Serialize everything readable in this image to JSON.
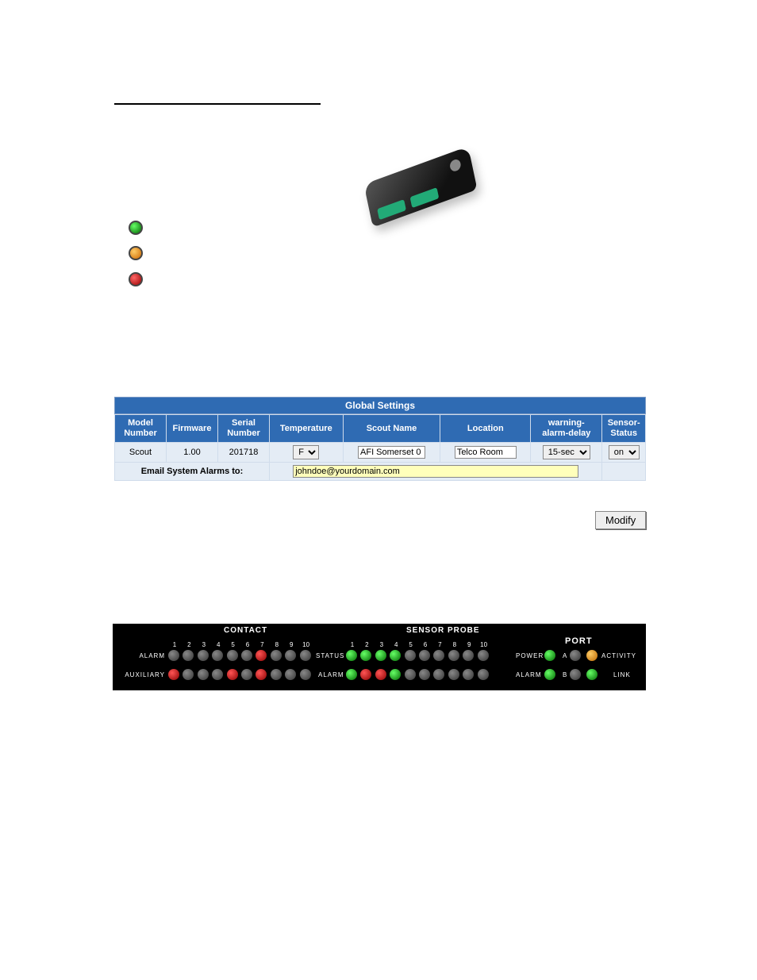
{
  "bullets": {
    "green_label": "",
    "orange_label": "",
    "red_label": ""
  },
  "global_settings": {
    "title": "Global Settings",
    "headers": [
      "Model\nNumber",
      "Firmware",
      "Serial\nNumber",
      "Temperature",
      "Scout Name",
      "Location",
      "warning-\nalarm-delay",
      "Sensor-\nStatus"
    ],
    "model": "Scout",
    "firmware": "1.00",
    "serial": "201718",
    "temp_unit": "F",
    "scout_name": "AFI Somerset 0",
    "location": "Telco Room",
    "delay": "15-sec",
    "sensor_status": "on",
    "email_label": "Email System Alarms to:",
    "email_value": "johndoe@yourdomain.com",
    "modify_label": "Modify"
  },
  "led_panel": {
    "background": "#000000",
    "section_contact": "CONTACT",
    "section_sensor": "SENSOR PROBE",
    "section_port": "PORT",
    "labels": {
      "alarm": "ALARM",
      "auxiliary": "AUXILIARY",
      "status": "STATUS",
      "alarm2": "ALARM",
      "power": "POWER",
      "alarm3": "ALARM",
      "activity": "ACTIVITY",
      "link": "LINK",
      "a": "A",
      "b": "B"
    },
    "numbers": [
      "1",
      "2",
      "3",
      "4",
      "5",
      "6",
      "7",
      "8",
      "9",
      "10"
    ],
    "contact_alarm": [
      "off",
      "off",
      "off",
      "off",
      "off",
      "off",
      "red",
      "off",
      "off",
      "off"
    ],
    "contact_aux": [
      "red",
      "off",
      "off",
      "off",
      "red",
      "off",
      "red",
      "off",
      "off",
      "off"
    ],
    "sensor_status": [
      "green",
      "green",
      "green",
      "green",
      "off",
      "off",
      "off",
      "off",
      "off",
      "off"
    ],
    "sensor_alarm": [
      "green",
      "red",
      "red",
      "green",
      "off",
      "off",
      "off",
      "off",
      "off",
      "off"
    ],
    "port_power": "green",
    "port_a": "off",
    "port_activity": "orange",
    "port_alarm": "green",
    "port_b": "off",
    "port_link": "green",
    "colors": {
      "off": "#555555",
      "green": "#1fd41f",
      "red": "#e02020",
      "orange": "#ff9c1a"
    }
  }
}
